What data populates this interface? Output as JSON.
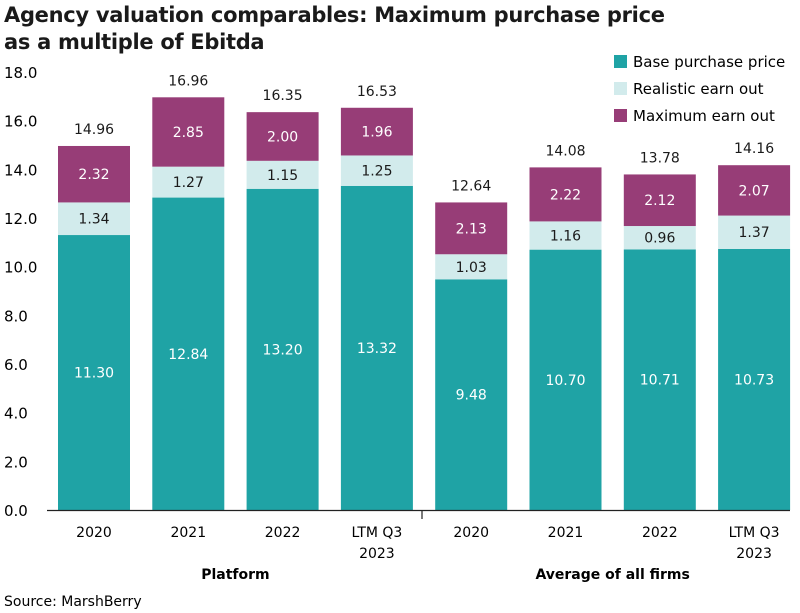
{
  "chart_data": {
    "type": "bar",
    "stacked": true,
    "title": "Agency valuation comparables: Maximum purchase price as a multiple of Ebitda",
    "source": "Source: MarshBerry",
    "groups": [
      {
        "name": "Platform",
        "categories": [
          "2020",
          "2021",
          "2022",
          "LTM Q3 2023"
        ]
      },
      {
        "name": "Average of all firms",
        "categories": [
          "2020",
          "2021",
          "2022",
          "LTM Q3 2023"
        ]
      }
    ],
    "categories": [
      "2020",
      "2021",
      "2022",
      "LTM Q3 2023",
      "2020",
      "2021",
      "2022",
      "LTM Q3 2023"
    ],
    "series": [
      {
        "name": "Base purchase price",
        "color": "#1fa3a5",
        "label_color": "#ffffff",
        "values": [
          11.3,
          12.84,
          13.2,
          13.32,
          9.48,
          10.7,
          10.71,
          10.73
        ]
      },
      {
        "name": "Realistic earn out",
        "color": "#d2ebec",
        "label_color": "#1a1a1a",
        "values": [
          1.34,
          1.27,
          1.15,
          1.25,
          1.03,
          1.16,
          0.96,
          1.37
        ]
      },
      {
        "name": "Maximum earn out",
        "color": "#973d77",
        "label_color": "#ffffff",
        "values": [
          2.32,
          2.85,
          2.0,
          1.96,
          2.13,
          2.22,
          2.12,
          2.07
        ]
      }
    ],
    "totals": [
      14.96,
      16.96,
      16.35,
      16.53,
      12.64,
      14.08,
      13.78,
      14.16
    ],
    "ylim": [
      0,
      18
    ],
    "yticks": [
      "0.0",
      "2.0",
      "4.0",
      "6.0",
      "8.0",
      "10.0",
      "12.0",
      "14.0",
      "16.0",
      "18.0"
    ],
    "grid": false,
    "legend": "top-right"
  }
}
